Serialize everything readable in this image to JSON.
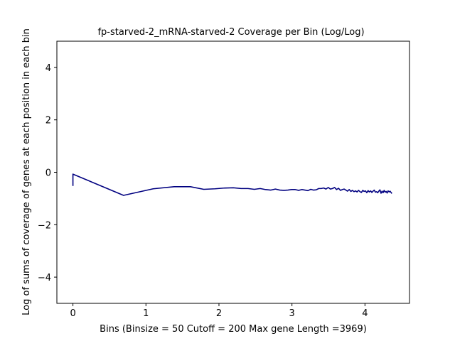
{
  "chart_data": {
    "type": "line",
    "title": "fp-starved-2_mRNA-starved-2 Coverage per Bin (Log/Log)",
    "xlabel": "Bins  (Binsize = 50 Cutoff = 200 Max gene Length =3969)",
    "ylabel": "Log of sums of coverage of genes at each position in each bin",
    "xlim": [
      -0.22,
      4.61
    ],
    "ylim": [
      -5,
      5
    ],
    "xticks": [
      0,
      1,
      2,
      3,
      4
    ],
    "yticks": [
      -4,
      -2,
      0,
      2,
      4
    ],
    "grid": false,
    "line_color": "#000080",
    "series": [
      {
        "x": [
          0,
          0,
          0.693,
          1.099,
          1.386,
          1.609,
          1.792,
          1.946,
          2.079,
          2.197,
          2.303,
          2.398,
          2.485,
          2.565,
          2.639,
          2.708,
          2.773,
          2.833,
          2.89,
          2.944,
          2.996,
          3.045,
          3.091,
          3.135,
          3.178,
          3.219,
          3.258,
          3.296,
          3.332,
          3.367,
          3.401,
          3.434,
          3.466,
          3.497,
          3.526,
          3.555,
          3.584,
          3.611,
          3.638,
          3.664,
          3.689,
          3.714,
          3.738,
          3.761,
          3.784,
          3.807,
          3.829,
          3.85,
          3.871,
          3.892,
          3.912,
          3.932,
          3.951,
          3.97,
          3.989,
          4.007,
          4.025,
          4.043,
          4.06,
          4.078,
          4.094,
          4.111,
          4.127,
          4.143,
          4.159,
          4.174,
          4.19,
          4.205,
          4.22,
          4.234,
          4.248,
          4.263,
          4.277,
          4.29,
          4.304,
          4.317,
          4.331,
          4.344,
          4.357,
          4.369
        ],
        "y": [
          -0.52,
          -0.07,
          -0.88,
          -0.63,
          -0.55,
          -0.55,
          -0.65,
          -0.63,
          -0.6,
          -0.59,
          -0.62,
          -0.62,
          -0.65,
          -0.62,
          -0.66,
          -0.68,
          -0.64,
          -0.68,
          -0.69,
          -0.68,
          -0.66,
          -0.66,
          -0.69,
          -0.66,
          -0.68,
          -0.7,
          -0.65,
          -0.68,
          -0.67,
          -0.62,
          -0.62,
          -0.6,
          -0.64,
          -0.58,
          -0.64,
          -0.62,
          -0.58,
          -0.66,
          -0.61,
          -0.69,
          -0.66,
          -0.64,
          -0.68,
          -0.72,
          -0.66,
          -0.73,
          -0.69,
          -0.74,
          -0.71,
          -0.75,
          -0.69,
          -0.74,
          -0.77,
          -0.69,
          -0.73,
          -0.71,
          -0.78,
          -0.7,
          -0.75,
          -0.71,
          -0.77,
          -0.72,
          -0.68,
          -0.76,
          -0.74,
          -0.78,
          -0.72,
          -0.67,
          -0.8,
          -0.72,
          -0.78,
          -0.69,
          -0.76,
          -0.73,
          -0.79,
          -0.71,
          -0.75,
          -0.72,
          -0.77,
          -0.81
        ]
      }
    ]
  }
}
